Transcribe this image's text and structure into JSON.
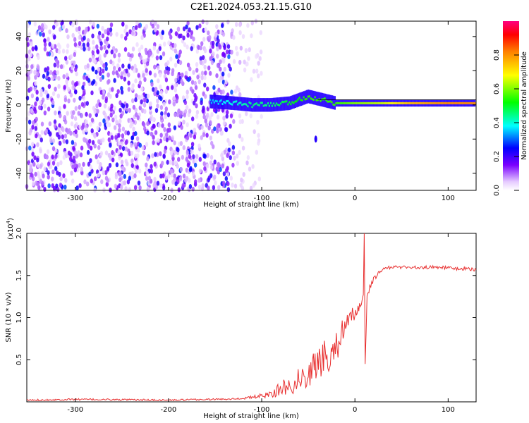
{
  "title": "C2E1.2024.053.21.15.G10",
  "chart_data": [
    {
      "type": "heatmap",
      "xlabel": "Height of straight line (km)",
      "ylabel": "Frequency (Hz)",
      "xlim": [
        -352,
        130
      ],
      "ylim": [
        -50,
        49
      ],
      "x_ticks": [
        -300,
        -200,
        -100,
        0,
        100
      ],
      "y_ticks": [
        -40,
        -20,
        0,
        20,
        40
      ],
      "colorbar": {
        "label": "Normalized spectral amplitude",
        "range": [
          0,
          1
        ],
        "ticks": [
          "0.0",
          "0.2",
          "0.4",
          "0.6",
          "0.8"
        ],
        "colors": [
          "#ffffff",
          "#cc88ff",
          "#7a00ff",
          "#0000ff",
          "#00ffff",
          "#00ff00",
          "#ffff00",
          "#ff8000",
          "#ff0000",
          "#ff0080"
        ]
      },
      "noise_region": {
        "x_from": -352,
        "x_to": -130,
        "level": 0.25
      },
      "signal_track": [
        {
          "x": -155,
          "y": 2,
          "amp": 0.35
        },
        {
          "x": -130,
          "y": 1,
          "amp": 0.4
        },
        {
          "x": -110,
          "y": 0,
          "amp": 0.45
        },
        {
          "x": -90,
          "y": 0,
          "amp": 0.45
        },
        {
          "x": -70,
          "y": 1,
          "amp": 0.5
        },
        {
          "x": -50,
          "y": 5,
          "amp": 0.55
        },
        {
          "x": -35,
          "y": 3,
          "amp": 0.55
        },
        {
          "x": -20,
          "y": 1,
          "amp": 0.55
        },
        {
          "x": 0,
          "y": 1,
          "amp": 0.6
        },
        {
          "x": 30,
          "y": 1,
          "amp": 0.65
        },
        {
          "x": 60,
          "y": 1,
          "amp": 0.75
        },
        {
          "x": 100,
          "y": 1,
          "amp": 0.8
        },
        {
          "x": 130,
          "y": 1,
          "amp": 0.8
        }
      ]
    },
    {
      "type": "line",
      "xlabel": "Height of straight line (km)",
      "ylabel": "SNR (10 * v/v)",
      "y_multiplier": "(x10",
      "y_multiplier_exponent": "4",
      "y_multiplier_close": ")",
      "xlim": [
        -352,
        130
      ],
      "ylim": [
        0,
        2.0
      ],
      "x_ticks": [
        -300,
        -200,
        -100,
        0,
        100
      ],
      "y_ticks": [
        0.5,
        1.0,
        1.5,
        2.0
      ],
      "y_tick_labels": [
        "0.5",
        "1.0",
        "1.5",
        "2.0"
      ],
      "series": [
        {
          "color": "#e83030",
          "x": [
            -352,
            -300,
            -200,
            -150,
            -120,
            -100,
            -90,
            -80,
            -70,
            -60,
            -50,
            -40,
            -30,
            -20,
            -10,
            0,
            5,
            9,
            10,
            11,
            13,
            16,
            20,
            25,
            30,
            40,
            50,
            60,
            70,
            80,
            90,
            100,
            110,
            120,
            130
          ],
          "y": [
            0.02,
            0.03,
            0.02,
            0.03,
            0.04,
            0.07,
            0.1,
            0.15,
            0.2,
            0.26,
            0.34,
            0.46,
            0.55,
            0.68,
            0.88,
            1.05,
            1.15,
            1.25,
            2.0,
            0.45,
            1.22,
            1.35,
            1.45,
            1.52,
            1.58,
            1.6,
            1.6,
            1.6,
            1.59,
            1.6,
            1.6,
            1.59,
            1.58,
            1.58,
            1.57
          ],
          "noise_amplitude": [
            0.01,
            0.01,
            0.01,
            0.01,
            0.01,
            0.03,
            0.05,
            0.08,
            0.12,
            0.15,
            0.18,
            0.22,
            0.22,
            0.2,
            0.15,
            0.1,
            0.08,
            0.06,
            0.0,
            0.0,
            0.05,
            0.04,
            0.03,
            0.02,
            0.02,
            0.02,
            0.02,
            0.02,
            0.02,
            0.02,
            0.02,
            0.02,
            0.02,
            0.02,
            0.02
          ]
        }
      ]
    }
  ]
}
